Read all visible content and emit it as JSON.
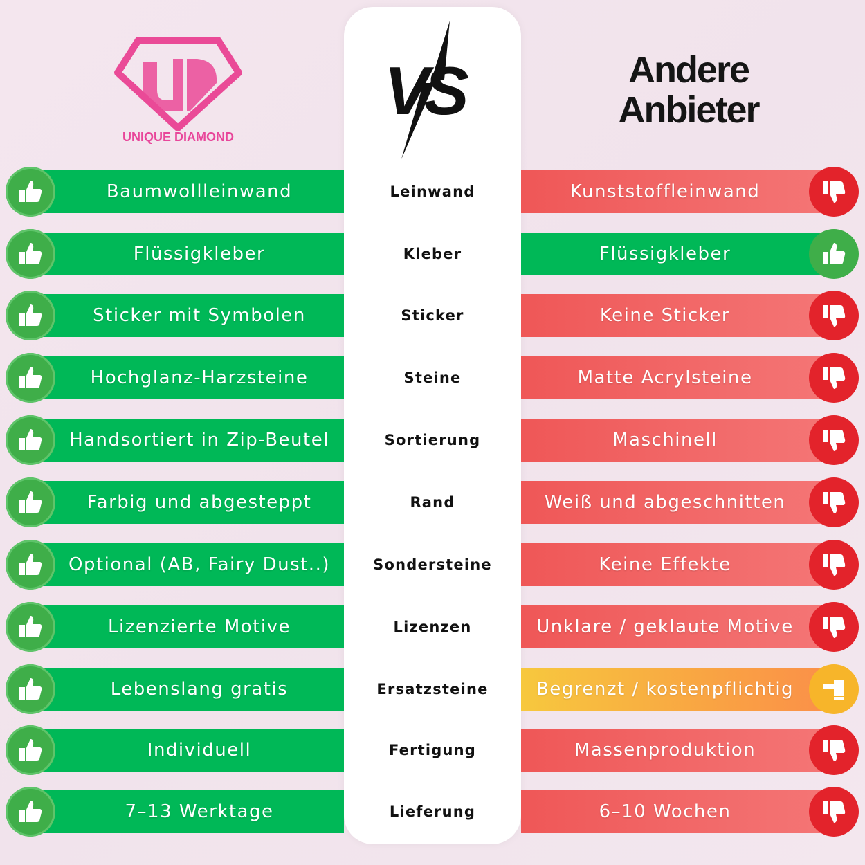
{
  "left": {
    "brand": "UNIQUE DIAMOND",
    "logo_letters": "UD"
  },
  "center": {
    "vs": "VS"
  },
  "right": {
    "title_line1": "Andere",
    "title_line2": "Anbieter"
  },
  "colors": {
    "green": "#00b857",
    "red": "#ef5757",
    "yellow": "#f9a443",
    "brand_pink": "#e8469a"
  },
  "rows": [
    {
      "category": "Leinwand",
      "ours": "Baumwollleinwand",
      "theirs": "Kunststoffleinwand",
      "rating": "bad"
    },
    {
      "category": "Kleber",
      "ours": "Flüssigkleber",
      "theirs": "Flüssigkleber",
      "rating": "good"
    },
    {
      "category": "Sticker",
      "ours": "Sticker mit Symbolen",
      "theirs": "Keine Sticker",
      "rating": "bad"
    },
    {
      "category": "Steine",
      "ours": "Hochglanz-Harzsteine",
      "theirs": "Matte Acrylsteine",
      "rating": "bad"
    },
    {
      "category": "Sortierung",
      "ours": "Handsortiert in Zip-Beutel",
      "theirs": "Maschinell",
      "rating": "bad"
    },
    {
      "category": "Rand",
      "ours": "Farbig und abgesteppt",
      "theirs": "Weiß und abgeschnitten",
      "rating": "bad"
    },
    {
      "category": "Sondersteine",
      "ours": "Optional (AB, Fairy Dust..)",
      "theirs": "Keine Effekte",
      "rating": "bad"
    },
    {
      "category": "Lizenzen",
      "ours": "Lizenzierte Motive",
      "theirs": "Unklare / geklaute Motive",
      "rating": "bad"
    },
    {
      "category": "Ersatzsteine",
      "ours": "Lebenslang gratis",
      "theirs": "Begrenzt / kostenpflichtig",
      "rating": "mid"
    },
    {
      "category": "Fertigung",
      "ours": "Individuell",
      "theirs": "Massenproduktion",
      "rating": "bad"
    },
    {
      "category": "Lieferung",
      "ours": "7–13 Werktage",
      "theirs": "6–10 Wochen",
      "rating": "bad"
    }
  ]
}
